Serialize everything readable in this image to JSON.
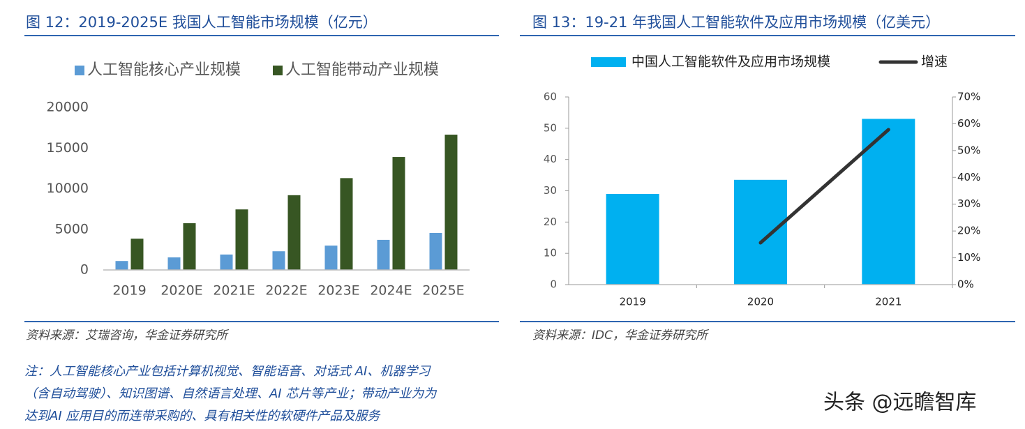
{
  "chart_data": [
    {
      "type": "bar",
      "title": "图 12：2019-2025E 我国人工智能市场规模（亿元）",
      "categories": [
        "2019",
        "2020E",
        "2021E",
        "2022E",
        "2023E",
        "2024E",
        "2025E"
      ],
      "series": [
        {
          "name": "人工智能核心产业规模",
          "color": "#5b9bd5",
          "values": [
            1100,
            1550,
            1900,
            2300,
            3000,
            3700,
            4550
          ]
        },
        {
          "name": "人工智能带动产业规模",
          "color": "#375623",
          "values": [
            3850,
            5750,
            7450,
            9200,
            11300,
            13900,
            16650
          ]
        }
      ],
      "ylim": [
        0,
        20000
      ],
      "yticks": [
        0,
        5000,
        10000,
        15000,
        20000
      ],
      "grid": false,
      "legend": "top",
      "source": "资料来源：艾瑞咨询，华金证券研究所",
      "note_lines": [
        "注：人工智能核心产业包括计算机视觉、智能语音、对话式 AI、机器学习",
        "（含自动驾驶）、知识图谱、自然语言处理、AI 芯片等产业；带动产业为为",
        "达到AI 应用目的而连带采购的、具有相关性的软硬件产品及服务"
      ]
    },
    {
      "type": "combo",
      "title": "图 13：19-21 年我国人工智能软件及应用市场规模（亿美元）",
      "categories": [
        "2019",
        "2020",
        "2021"
      ],
      "series": [
        {
          "name": "中国人工智能软件及应用市场规模",
          "color": "#00b0f0",
          "values": [
            29,
            33.5,
            53
          ]
        },
        {
          "name": "增速",
          "color": "#333333",
          "values": [
            null,
            15.6,
            57.8
          ],
          "axis": "y2"
        }
      ],
      "ylim": [
        0,
        60
      ],
      "yticks": [
        0,
        10,
        20,
        30,
        40,
        50,
        60
      ],
      "y2lim": [
        0,
        70
      ],
      "y2ticks": [
        {
          "value": 0,
          "label": "0%"
        },
        {
          "value": 10,
          "label": "10%"
        },
        {
          "value": 20,
          "label": "20%"
        },
        {
          "value": 30,
          "label": "30%"
        },
        {
          "value": 40,
          "label": "40%"
        },
        {
          "value": 50,
          "label": "50%"
        },
        {
          "value": 60,
          "label": "60%"
        },
        {
          "value": 70,
          "label": "70%"
        }
      ],
      "grid": false,
      "legend": "top",
      "source": "资料来源：IDC，华金证券研究所"
    }
  ],
  "watermark": "头条 @远瞻智库"
}
